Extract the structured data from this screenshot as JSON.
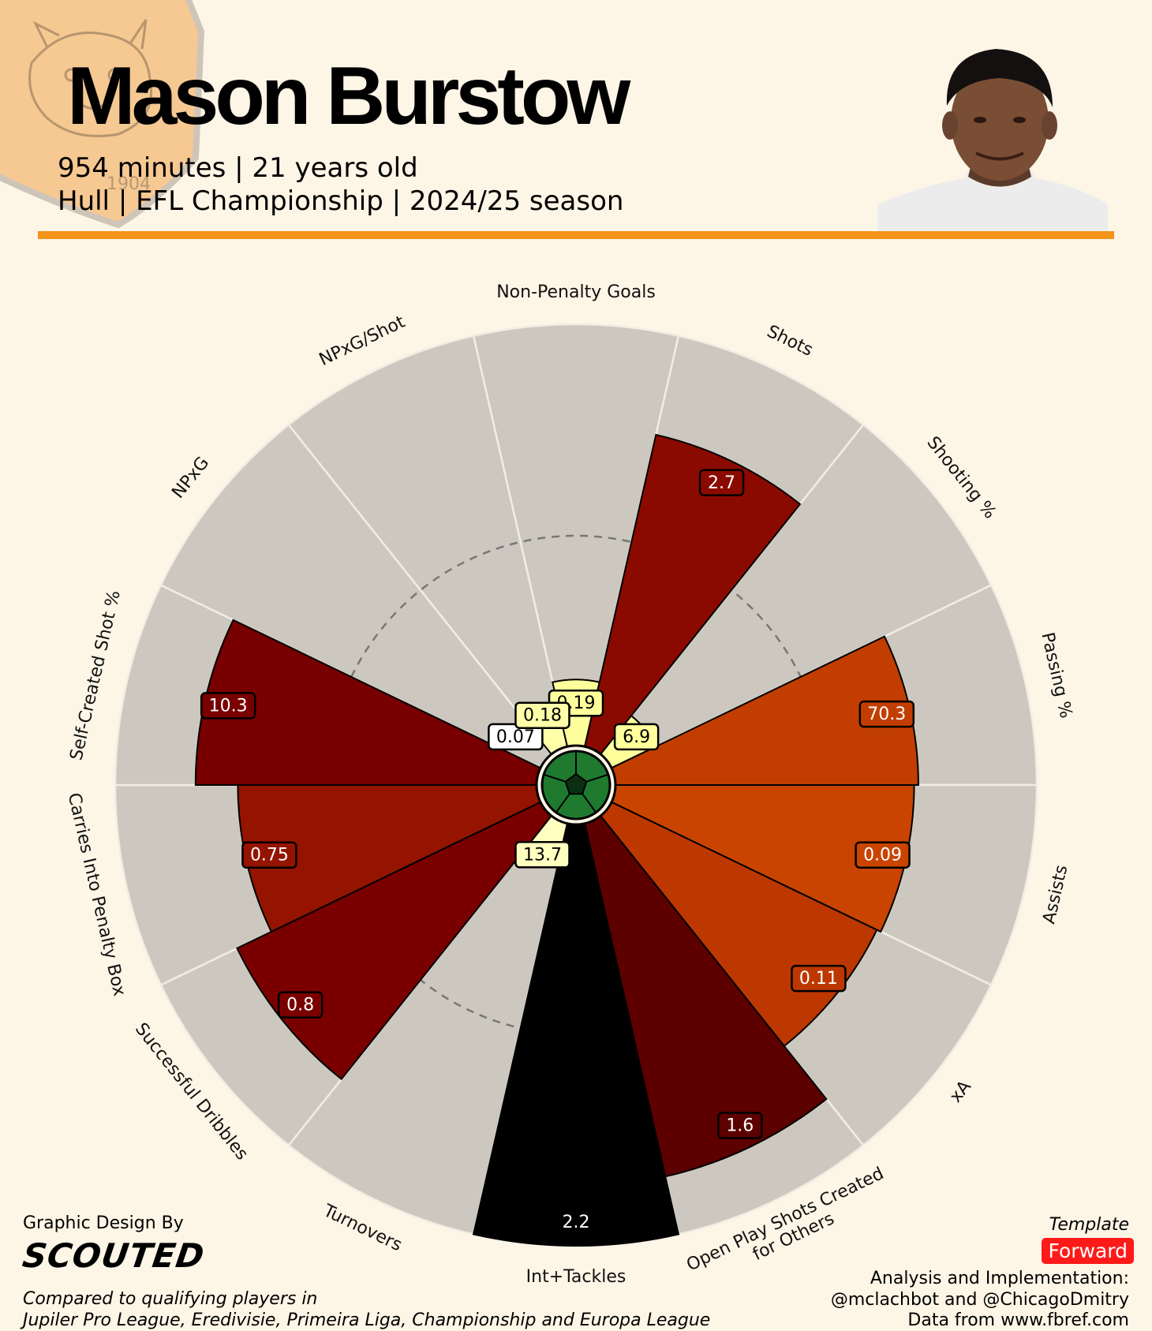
{
  "header": {
    "player_name": "Mason Burstow",
    "line1": "954 minutes | 21 years old",
    "line2": "Hull | EFL Championship | 2024/25 season"
  },
  "footer": {
    "design_label": "Graphic Design By",
    "brand": "SCOUTED",
    "compare_line1": "Compared to qualifying players in",
    "compare_line2": "Jupiler Pro League, Eredivisie, Primeira Liga, Championship and Europa League",
    "template_label": "Template",
    "template_value": "Forward",
    "credit_line1": "Analysis and Implementation:",
    "credit_line2": "@mclachbot and @ChicagoDmitry",
    "credit_line3": "Data from www.fbref.com"
  },
  "colors": {
    "background": "#fdf5e6",
    "accent_rule": "#f39418",
    "slice_background": "#cdc8bf",
    "badge": "#ff1a1a"
  },
  "chart_data": {
    "type": "polar-bar (pizza)",
    "value_scale": "percentile (0-100), reference ring at 50",
    "metrics": [
      {
        "label": "Non-Penalty Goals",
        "value": "0.19",
        "percentile": 16,
        "color": "#ffff9c"
      },
      {
        "label": "Shots",
        "value": "2.7",
        "percentile": 76,
        "color": "#8b0a00"
      },
      {
        "label": "Shooting %",
        "value": "6.9",
        "percentile": 12,
        "color": "#ffff9c"
      },
      {
        "label": "Passing %",
        "value": "70.3",
        "percentile": 72,
        "color": "#c23e00"
      },
      {
        "label": "Assists",
        "value": "0.09",
        "percentile": 71,
        "color": "#c94400"
      },
      {
        "label": "xA",
        "value": "0.11",
        "percentile": 70,
        "color": "#bd3800"
      },
      {
        "label": "Open Play Shots Created for Others",
        "value": "1.6",
        "percentile": 86,
        "color": "#5c0000"
      },
      {
        "label": "Int+Tackles",
        "value": "2.2",
        "percentile": 100,
        "color": "#000000"
      },
      {
        "label": "Turnovers",
        "value": "13.7",
        "percentile": 9,
        "color": "#ffffc0"
      },
      {
        "label": "Successful Dribbles",
        "value": "0.8",
        "percentile": 80,
        "color": "#7a0000"
      },
      {
        "label": "Carries Into Penalty Box",
        "value": "0.75",
        "percentile": 71,
        "color": "#941400"
      },
      {
        "label": "Self-Created Shot %",
        "value": "10.3",
        "percentile": 81,
        "color": "#780000"
      },
      {
        "label": "NPxG",
        "value": "0.07",
        "percentile": 0,
        "color": "#ffffff"
      },
      {
        "label": "NPxG/Shot",
        "value": "0.18",
        "percentile": 10,
        "color": "#ffffaa"
      }
    ]
  }
}
